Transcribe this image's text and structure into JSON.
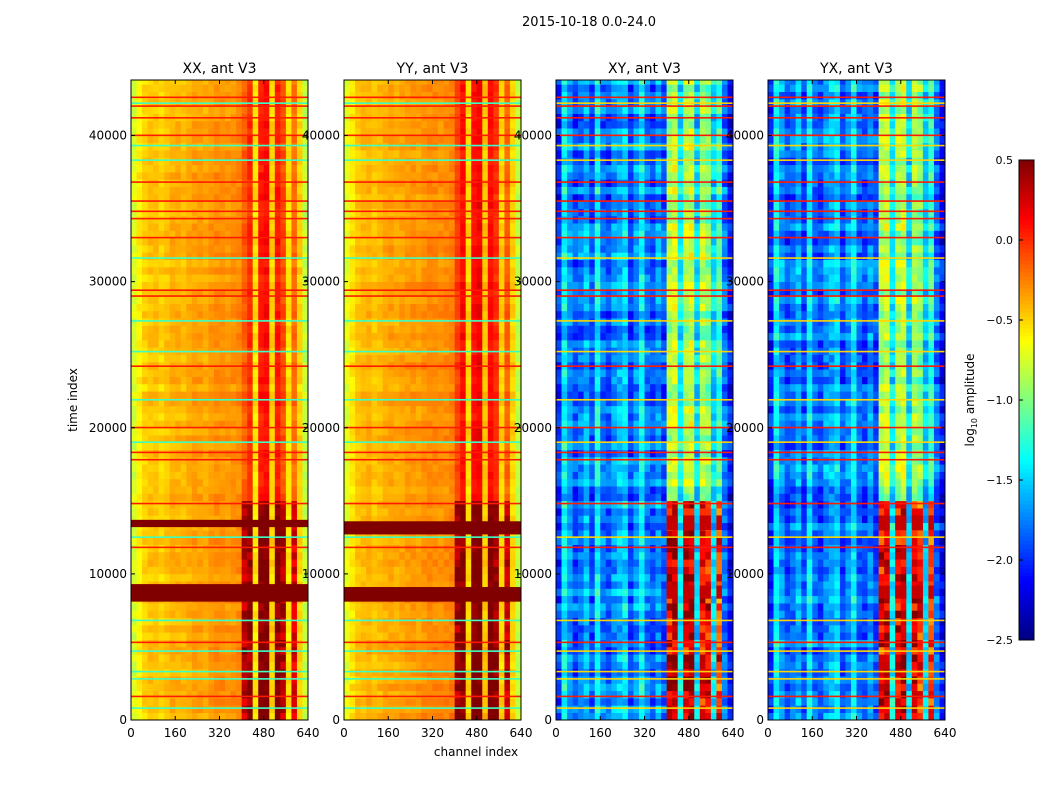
{
  "chart_data": {
    "type": "heatmap",
    "title": "2015-10-18 0.0-24.0",
    "xlabel": "channel index",
    "ylabel": "time index",
    "xlim": [
      0,
      640
    ],
    "ylim": [
      0,
      43800
    ],
    "xticks": [
      "0",
      "160",
      "320",
      "480",
      "640"
    ],
    "xtick_values": [
      0,
      160,
      320,
      480,
      640
    ],
    "yticks": [
      "0",
      "10000",
      "20000",
      "30000",
      "40000"
    ],
    "ytick_values": [
      0,
      10000,
      20000,
      30000,
      40000
    ],
    "colorbar": {
      "label_prefix": "log",
      "label_sub": "10",
      "label_suffix": " amplitude",
      "range": [
        -2.5,
        0.5
      ],
      "ticks": [
        "0.5",
        "0.0",
        "−0.5",
        "−1.0",
        "−1.5",
        "−2.0",
        "−2.5"
      ],
      "tick_values": [
        0.5,
        0.0,
        -0.5,
        -1.0,
        -1.5,
        -2.0,
        -2.5
      ],
      "colormap": "jet"
    },
    "panels": [
      {
        "title": "XX, ant V3",
        "kind": "auto",
        "channel_profile": [
          -0.75,
          -0.6,
          -0.5,
          -0.45,
          -0.45,
          -0.5,
          -0.45,
          -0.4,
          -0.4,
          -0.42,
          -0.38,
          -0.35,
          -0.35,
          -0.38,
          -0.33,
          -0.3,
          -0.3,
          -0.32,
          -0.3,
          -0.28,
          -0.15,
          0.0,
          -0.55,
          0.05,
          0.1,
          -0.5,
          0.05,
          -0.1,
          -0.55,
          -0.2,
          -0.5,
          -0.8
        ],
        "dark_bands": [
          [
            8100,
            9300
          ],
          [
            13200,
            13700
          ]
        ],
        "burst_region": [
          0,
          15000
        ]
      },
      {
        "title": "YY, ant V3",
        "kind": "auto",
        "channel_profile": [
          -0.7,
          -0.55,
          -0.45,
          -0.42,
          -0.4,
          -0.45,
          -0.42,
          -0.38,
          -0.36,
          -0.38,
          -0.35,
          -0.33,
          -0.32,
          -0.34,
          -0.3,
          -0.28,
          -0.28,
          -0.3,
          -0.28,
          -0.25,
          -0.05,
          0.1,
          -0.5,
          0.1,
          0.15,
          -0.45,
          0.1,
          0.0,
          -0.5,
          -0.15,
          -0.5,
          -0.8
        ],
        "dark_bands": [
          [
            8100,
            9100
          ],
          [
            12700,
            13600
          ]
        ],
        "burst_region": [
          0,
          15000
        ]
      },
      {
        "title": "XY, ant V3",
        "kind": "cross",
        "channel_profile": [
          -2.0,
          -1.4,
          -1.7,
          -1.9,
          -1.8,
          -1.6,
          -1.9,
          -1.4,
          -1.8,
          -1.9,
          -1.7,
          -1.6,
          -1.5,
          -1.9,
          -1.7,
          -1.4,
          -1.8,
          -1.9,
          -1.7,
          -1.9,
          -0.9,
          -0.8,
          -1.4,
          -0.9,
          -0.8,
          -1.5,
          -0.9,
          -1.0,
          -1.5,
          -1.2,
          -1.8,
          -2.1
        ],
        "dark_bands": [
          [
            8300,
            9200
          ],
          [
            13000,
            14000
          ]
        ],
        "burst_region": [
          0,
          15000
        ]
      },
      {
        "title": "YX, ant V3",
        "kind": "cross",
        "channel_profile": [
          -2.0,
          -1.4,
          -1.7,
          -1.9,
          -1.8,
          -1.6,
          -1.9,
          -1.4,
          -1.8,
          -1.9,
          -1.7,
          -1.6,
          -1.5,
          -1.9,
          -1.7,
          -1.4,
          -1.8,
          -1.9,
          -1.7,
          -1.9,
          -0.9,
          -0.8,
          -1.4,
          -0.9,
          -0.8,
          -1.5,
          -0.9,
          -1.0,
          -1.5,
          -1.2,
          -1.8,
          -2.1
        ],
        "dark_bands": [
          [
            8300,
            9200
          ],
          [
            13000,
            14000
          ]
        ],
        "burst_region": [
          0,
          15000
        ]
      }
    ],
    "flagged_rows_high": [
      1600,
      5300,
      11800,
      14800,
      17800,
      18300,
      20000,
      24200,
      29000,
      29400,
      33000,
      34300,
      34800,
      35500,
      36800,
      40000,
      41200,
      42000,
      42600
    ],
    "flagged_rows_low": [
      800,
      2800,
      3300,
      4700,
      6800,
      12500,
      19000,
      21900,
      25200,
      27300,
      31600,
      38300,
      39300,
      42200
    ]
  }
}
